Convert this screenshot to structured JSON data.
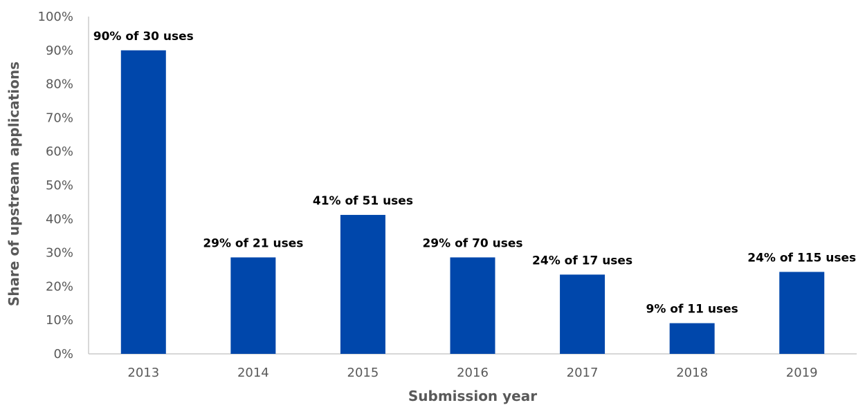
{
  "chart_data": {
    "type": "bar",
    "categories": [
      "2013",
      "2014",
      "2015",
      "2016",
      "2017",
      "2018",
      "2019"
    ],
    "values": [
      90,
      28.6,
      41.2,
      28.6,
      23.5,
      9.1,
      24.3
    ],
    "data_labels": [
      "90% of 30 uses",
      "29% of 21 uses",
      "41% of 51 uses",
      "29% of 70 uses",
      "24% of 17 uses",
      "9% of 11 uses",
      "24% of 115 uses"
    ],
    "xlabel": "Submission year",
    "ylabel": "Share of upstream applications",
    "ylim": [
      0,
      100
    ],
    "yticks": [
      0,
      10,
      20,
      30,
      40,
      50,
      60,
      70,
      80,
      90,
      100
    ],
    "ytick_labels": [
      "0%",
      "10%",
      "20%",
      "30%",
      "40%",
      "50%",
      "60%",
      "70%",
      "80%",
      "90%",
      "100%"
    ],
    "grid": false,
    "legend": "none",
    "bar_color": "#0047AB"
  }
}
